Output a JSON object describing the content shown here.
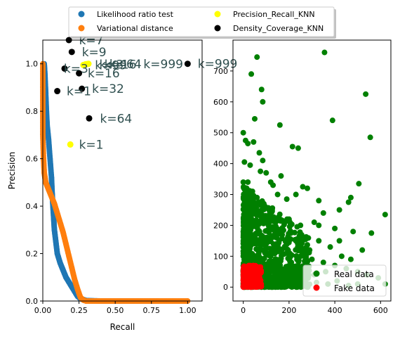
{
  "colors": {
    "lrt": "#1f77b4",
    "var": "#ff7f0e",
    "pr_knn": "#ffff00",
    "dc_knn": "#000000",
    "real": "#008000",
    "fake": "#ff0000",
    "k_label": "#2f4f4f"
  },
  "chart_data": [
    {
      "type": "scatter",
      "xlabel": "Recall",
      "ylabel": "Precision",
      "xlim": [
        0,
        1.1
      ],
      "ylim": [
        0,
        1.1
      ],
      "xticks": [
        "0.00",
        "0.25",
        "0.50",
        "0.75",
        "1.00"
      ],
      "yticks": [
        "0.0",
        "0.2",
        "0.4",
        "0.6",
        "0.8",
        "1.0"
      ],
      "legend": {
        "placement": "top-outside",
        "entries": [
          {
            "key": "lrt",
            "label": "Likelihood ratio test"
          },
          {
            "key": "var",
            "label": "Variational distance"
          },
          {
            "key": "pr_knn",
            "label": "Precision_Recall_KNN"
          },
          {
            "key": "dc_knn",
            "label": "Density_Coverage_KNN"
          }
        ]
      },
      "series": [
        {
          "key": "lrt",
          "label": "Likelihood ratio test",
          "points": [
            [
              0.01,
              1.0
            ],
            [
              0.015,
              0.95
            ],
            [
              0.02,
              0.88
            ],
            [
              0.025,
              0.8
            ],
            [
              0.03,
              0.74
            ],
            [
              0.04,
              0.68
            ],
            [
              0.05,
              0.6
            ],
            [
              0.06,
              0.52
            ],
            [
              0.065,
              0.45
            ],
            [
              0.07,
              0.4
            ],
            [
              0.075,
              0.35
            ],
            [
              0.08,
              0.3
            ],
            [
              0.09,
              0.25
            ],
            [
              0.1,
              0.2
            ],
            [
              0.12,
              0.16
            ],
            [
              0.14,
              0.13
            ],
            [
              0.16,
              0.1
            ],
            [
              0.18,
              0.08
            ],
            [
              0.2,
              0.06
            ],
            [
              0.22,
              0.04
            ],
            [
              0.24,
              0.02
            ],
            [
              0.26,
              0.01
            ],
            [
              0.3,
              0.002
            ],
            [
              0.4,
              0.0
            ],
            [
              0.5,
              0.0
            ],
            [
              0.6,
              0.0
            ],
            [
              0.7,
              0.0
            ],
            [
              0.8,
              0.0
            ]
          ]
        },
        {
          "key": "var",
          "label": "Variational distance",
          "points": [
            [
              0.0,
              1.0
            ],
            [
              0.0,
              0.9
            ],
            [
              0.0,
              0.8
            ],
            [
              0.0,
              0.7
            ],
            [
              0.005,
              0.6
            ],
            [
              0.01,
              0.54
            ],
            [
              0.02,
              0.5
            ],
            [
              0.04,
              0.47
            ],
            [
              0.06,
              0.44
            ],
            [
              0.08,
              0.41
            ],
            [
              0.1,
              0.37
            ],
            [
              0.12,
              0.33
            ],
            [
              0.14,
              0.29
            ],
            [
              0.16,
              0.24
            ],
            [
              0.18,
              0.19
            ],
            [
              0.2,
              0.14
            ],
            [
              0.22,
              0.09
            ],
            [
              0.24,
              0.05
            ],
            [
              0.26,
              0.015
            ],
            [
              0.28,
              0.004
            ],
            [
              0.3,
              0.0
            ],
            [
              0.4,
              0.0
            ],
            [
              0.5,
              0.0
            ],
            [
              0.6,
              0.0
            ],
            [
              0.7,
              0.0
            ],
            [
              0.8,
              0.0
            ],
            [
              0.9,
              0.0
            ],
            [
              1.0,
              0.0
            ]
          ]
        },
        {
          "key": "pr_knn",
          "label": "Precision_Recall_KNN",
          "points": [
            [
              0.19,
              0.66
            ],
            [
              0.28,
              0.995
            ],
            [
              0.295,
              0.998
            ],
            [
              0.305,
              0.999
            ],
            [
              0.315,
              1.0
            ]
          ]
        },
        {
          "key": "dc_knn",
          "label": "Density_Coverage_KNN",
          "points": [
            [
              0.1,
              0.885
            ],
            [
              0.15,
              0.98
            ],
            [
              0.18,
              1.1
            ],
            [
              0.2,
              1.05
            ],
            [
              0.25,
              0.96
            ],
            [
              0.27,
              0.895
            ],
            [
              0.32,
              0.77
            ],
            [
              1.0,
              1.0
            ]
          ]
        }
      ],
      "annotations": [
        {
          "text": "k=1",
          "x": 0.25,
          "y": 0.66
        },
        {
          "text": "k=7",
          "x": 0.25,
          "y": 1.1
        },
        {
          "text": "k=9",
          "x": 0.27,
          "y": 1.05
        },
        {
          "text": "k=3",
          "x": 0.145,
          "y": 0.98
        },
        {
          "text": "k=16",
          "x": 0.31,
          "y": 0.96
        },
        {
          "text": "k=1",
          "x": 0.165,
          "y": 0.885
        },
        {
          "text": "k=32",
          "x": 0.34,
          "y": 0.895
        },
        {
          "text": "k=64",
          "x": 0.395,
          "y": 0.77
        },
        {
          "text": "k=999",
          "x": 1.07,
          "y": 1.0
        },
        {
          "text": "k=99",
          "x": 0.36,
          "y": 0.995
        },
        {
          "text": "k=3",
          "x": 0.39,
          "y": 0.998
        },
        {
          "text": "k=16",
          "x": 0.425,
          "y": 0.998
        },
        {
          "text": "k=64",
          "x": 0.46,
          "y": 0.999
        },
        {
          "text": "k=999",
          "x": 0.695,
          "y": 0.999
        }
      ]
    },
    {
      "type": "scatter",
      "xlim": [
        -45,
        645
      ],
      "ylim": [
        -45,
        800
      ],
      "xticks": [
        0,
        200,
        400,
        600
      ],
      "yticks": [
        0,
        100,
        200,
        300,
        400,
        500,
        600,
        700
      ],
      "legend": {
        "placement": "lower-right",
        "entries": [
          {
            "key": "real",
            "label": "Real data"
          },
          {
            "key": "fake",
            "label": "Fake data"
          }
        ]
      },
      "series": [
        {
          "key": "real",
          "label": "Real data",
          "points": [
            [
              355,
              760
            ],
            [
              60,
              745
            ],
            [
              35,
              690
            ],
            [
              535,
              625
            ],
            [
              80,
              640
            ],
            [
              85,
              600
            ],
            [
              390,
              540
            ],
            [
              160,
              525
            ],
            [
              0,
              500
            ],
            [
              50,
              545
            ],
            [
              10,
              475
            ],
            [
              20,
              465
            ],
            [
              45,
              470
            ],
            [
              555,
              485
            ],
            [
              215,
              455
            ],
            [
              240,
              450
            ],
            [
              70,
              435
            ],
            [
              85,
              410
            ],
            [
              5,
              405
            ],
            [
              30,
              395
            ],
            [
              75,
              375
            ],
            [
              100,
              370
            ],
            [
              165,
              360
            ],
            [
              505,
              335
            ],
            [
              0,
              340
            ],
            [
              20,
              340
            ],
            [
              120,
              340
            ],
            [
              130,
              330
            ],
            [
              260,
              325
            ],
            [
              280,
              320
            ],
            [
              470,
              290
            ],
            [
              460,
              275
            ],
            [
              620,
              235
            ],
            [
              230,
              300
            ],
            [
              330,
              280
            ],
            [
              190,
              285
            ],
            [
              150,
              300
            ],
            [
              420,
              250
            ],
            [
              350,
              240
            ],
            [
              310,
              210
            ],
            [
              400,
              190
            ],
            [
              560,
              175
            ],
            [
              480,
              180
            ],
            [
              330,
              200
            ],
            [
              250,
              200
            ],
            [
              200,
              220
            ],
            [
              120,
              250
            ],
            [
              90,
              270
            ],
            [
              60,
              290
            ],
            [
              40,
              310
            ],
            [
              15,
              320
            ],
            [
              270,
              160
            ],
            [
              330,
              150
            ],
            [
              230,
              150
            ],
            [
              420,
              150
            ],
            [
              290,
              120
            ],
            [
              380,
              130
            ],
            [
              190,
              110
            ],
            [
              145,
              140
            ],
            [
              100,
              160
            ],
            [
              70,
              180
            ],
            [
              40,
              200
            ],
            [
              10,
              220
            ],
            [
              5,
              260
            ],
            [
              20,
              280
            ],
            [
              55,
              240
            ],
            [
              80,
              220
            ],
            [
              110,
              200
            ],
            [
              140,
              190
            ],
            [
              170,
              170
            ],
            [
              200,
              150
            ],
            [
              250,
              100
            ],
            [
              300,
              90
            ],
            [
              350,
              80
            ],
            [
              400,
              70
            ],
            [
              450,
              60
            ],
            [
              500,
              50
            ],
            [
              540,
              40
            ],
            [
              590,
              30
            ],
            [
              620,
              10
            ],
            [
              470,
              90
            ],
            [
              520,
              120
            ],
            [
              430,
              100
            ],
            [
              360,
              50
            ],
            [
              310,
              40
            ],
            [
              260,
              60
            ],
            [
              210,
              80
            ],
            [
              160,
              90
            ],
            [
              120,
              100
            ],
            [
              90,
              120
            ],
            [
              60,
              140
            ],
            [
              30,
              160
            ],
            [
              0,
              180
            ],
            [
              15,
              100
            ],
            [
              40,
              80
            ],
            [
              70,
              60
            ],
            [
              100,
              40
            ],
            [
              130,
              20
            ],
            [
              160,
              10
            ],
            [
              190,
              5
            ],
            [
              220,
              30
            ],
            [
              250,
              20
            ],
            [
              280,
              10
            ],
            [
              320,
              15
            ],
            [
              370,
              10
            ],
            [
              410,
              20
            ],
            [
              460,
              5
            ],
            [
              500,
              10
            ],
            [
              25,
              50
            ],
            [
              55,
              30
            ],
            [
              85,
              10
            ],
            [
              0,
              40
            ],
            [
              10,
              10
            ]
          ]
        },
        {
          "key": "real_cluster",
          "label": "",
          "cluster": {
            "x": [
              0,
              290
            ],
            "y": [
              0,
              330
            ],
            "density": 900
          }
        },
        {
          "key": "fake",
          "label": "Fake data",
          "cluster": {
            "x": [
              0,
              80
            ],
            "y": [
              0,
              70
            ],
            "density": 260
          }
        }
      ]
    }
  ]
}
